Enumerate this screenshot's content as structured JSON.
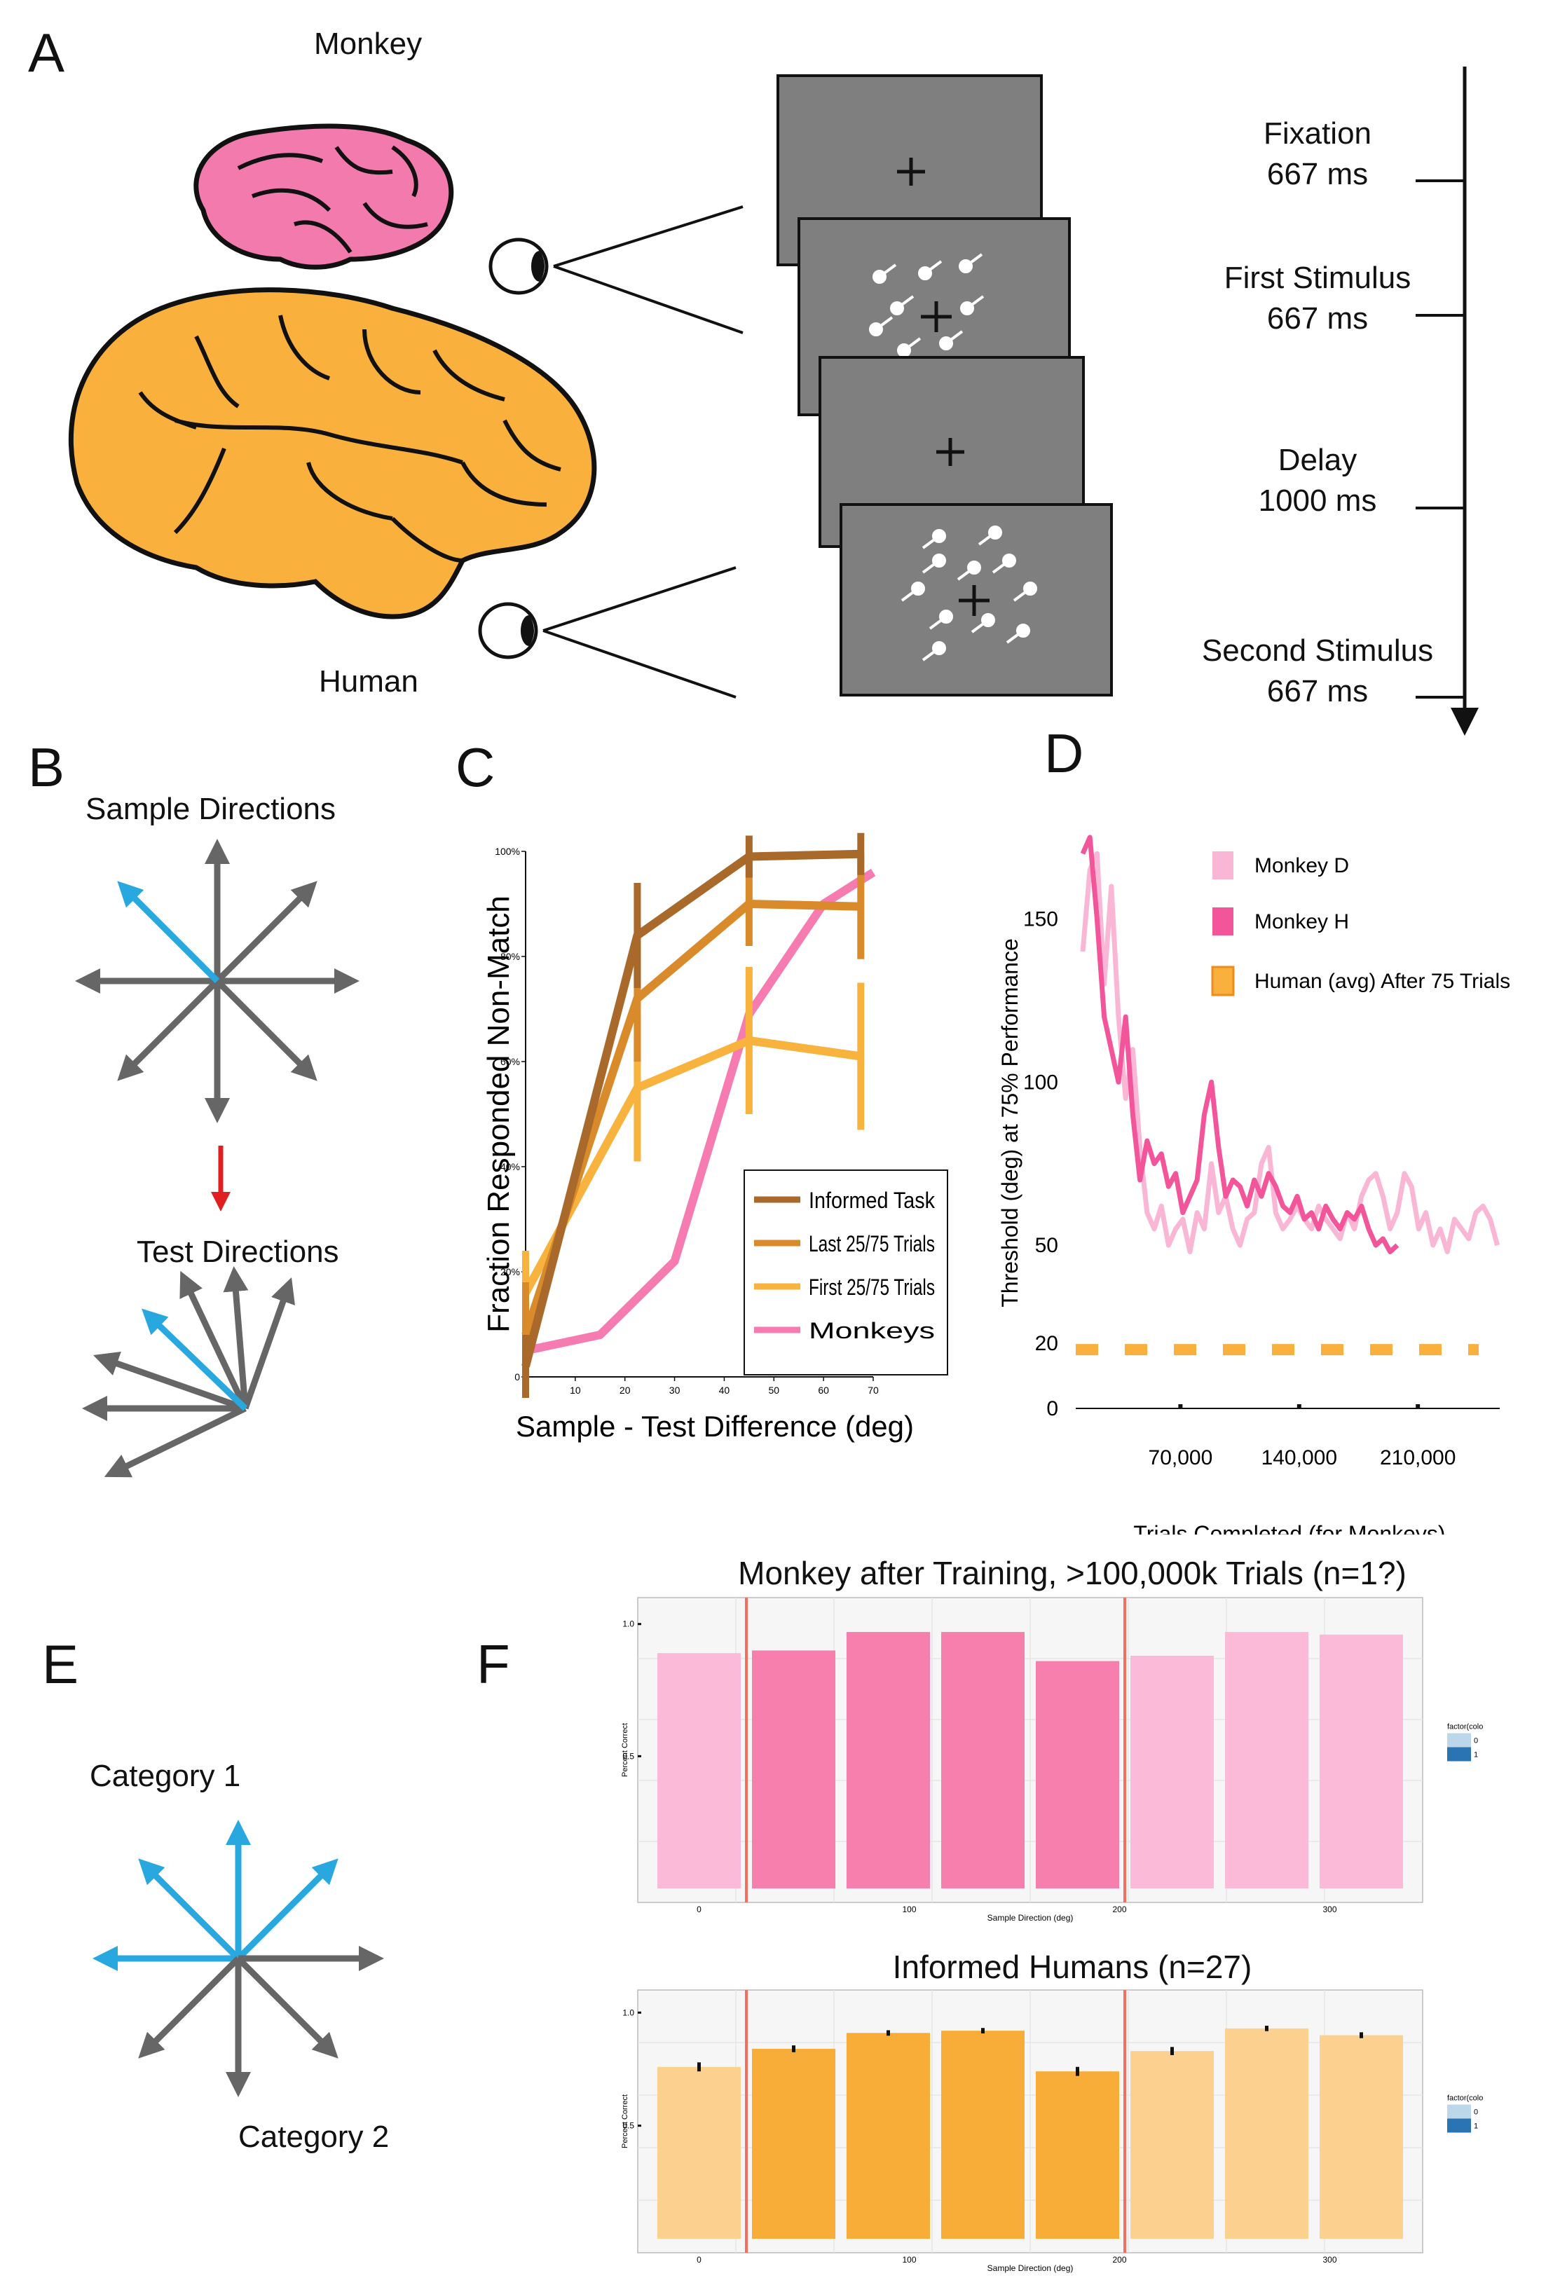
{
  "panels": {
    "a": "A",
    "b": "B",
    "c": "C",
    "d": "D",
    "e": "E",
    "f": "F"
  },
  "panel_a": {
    "monkey_label": "Monkey",
    "human_label": "Human",
    "timeline": [
      {
        "name": "Fixation",
        "dur": "667 ms"
      },
      {
        "name": "First Stimulus",
        "dur": "667 ms"
      },
      {
        "name": "Delay",
        "dur": "1000 ms"
      },
      {
        "name": "Second Stimulus",
        "dur": "667 ms"
      }
    ],
    "colors": {
      "monkey_brain": "#f37aad",
      "human_brain": "#f9b03d",
      "screen": "#7f7f7f"
    }
  },
  "panel_b": {
    "sample_title": "Sample Directions",
    "test_title": "Test Directions",
    "colors": {
      "highlight": "#29a8e0",
      "arrow": "#666666",
      "red": "#e02020"
    }
  },
  "panel_e": {
    "cat1": "Category 1",
    "cat2": "Category 2"
  },
  "chart_data": [
    {
      "id": "C",
      "type": "line",
      "xlabel": "Sample - Test Difference (deg)",
      "ylabel": "Fraction Responded Non-Match",
      "xlim": [
        0,
        70
      ],
      "ylim": [
        0,
        100
      ],
      "xticks": [
        "0",
        "10",
        "20",
        "30",
        "40",
        "50",
        "60",
        "70"
      ],
      "yticks": [
        "0",
        "20%",
        "40%",
        "60%",
        "80%",
        "100%"
      ],
      "legend_position": "bottom-right",
      "series": [
        {
          "name": "Informed Task",
          "color": "#a8692a",
          "x": [
            0,
            22.5,
            45,
            67.5
          ],
          "y": [
            2,
            84,
            99,
            99.5
          ],
          "err": [
            3,
            5,
            2,
            2
          ]
        },
        {
          "name": "Last 25/75 Trials",
          "color": "#d98a2b",
          "x": [
            0,
            22.5,
            45,
            67.5
          ],
          "y": [
            8,
            72,
            90,
            89.5
          ],
          "err": [
            5,
            6,
            4,
            5
          ]
        },
        {
          "name": "First 25/75 Trials",
          "color": "#f7b33d",
          "x": [
            0,
            22.5,
            45,
            67.5
          ],
          "y": [
            16,
            55,
            64,
            61
          ],
          "err": [
            4,
            7,
            7,
            7
          ]
        },
        {
          "name": "Monkeys",
          "color": "#f57bb0",
          "x": [
            0,
            15,
            30,
            45,
            60,
            70
          ],
          "y": [
            5,
            8,
            22,
            69,
            90,
            96
          ]
        }
      ]
    },
    {
      "id": "D",
      "type": "line",
      "xlabel": "Trials Completed (for Monkeys)",
      "ylabel": "Threshold (deg) at 75% Performance",
      "xticks": [
        "70,000",
        "140,000",
        "210,000"
      ],
      "yticks": [
        "0",
        "20",
        "50",
        "100",
        "150"
      ],
      "ylim": [
        0,
        175
      ],
      "legend": [
        "Monkey D",
        "Monkey H",
        "Human (avg) After 75 Trials"
      ],
      "legend_position": "top-right",
      "colors": [
        "#f9b7d5",
        "#f2559a",
        "#f9b03d"
      ],
      "human_avg": 18
    },
    {
      "id": "F-top",
      "type": "bar",
      "title": "Monkey after Training, >100,000k Trials (n=1?)",
      "xlabel": "Sample Direction (deg)",
      "ylabel": "Percent Correct",
      "xticks": [
        "0",
        "100",
        "200",
        "300"
      ],
      "yticks": [
        "0.5",
        "1.0"
      ],
      "legend_title": "factor(colo",
      "legend_items": [
        "0",
        "1"
      ],
      "categories": [
        0,
        45,
        90,
        135,
        180,
        225,
        270,
        315
      ],
      "values": [
        0.89,
        0.9,
        0.97,
        0.97,
        0.86,
        0.88,
        0.97,
        0.96
      ],
      "category_group": [
        0,
        1,
        1,
        1,
        1,
        0,
        0,
        0
      ],
      "colors": {
        "c0": "#fbbad7",
        "c1": "#f77fae",
        "line": "#f26f5f"
      }
    },
    {
      "id": "F-bottom",
      "type": "bar",
      "title": "Informed Humans (n=27)",
      "xlabel": "Sample Direction (deg)",
      "ylabel": "Percent Correct",
      "xticks": [
        "0",
        "100",
        "200",
        "300"
      ],
      "yticks": [
        "0.5",
        "1.0"
      ],
      "legend_title": "factor(colo",
      "legend_items": [
        "0",
        "1"
      ],
      "categories": [
        0,
        45,
        90,
        135,
        180,
        225,
        270,
        315
      ],
      "values": [
        0.76,
        0.84,
        0.91,
        0.92,
        0.74,
        0.83,
        0.93,
        0.9
      ],
      "errors": [
        0.02,
        0.015,
        0.012,
        0.012,
        0.02,
        0.018,
        0.012,
        0.013
      ],
      "category_group": [
        0,
        1,
        1,
        1,
        1,
        0,
        0,
        0
      ],
      "colors": {
        "c0": "#fcd08e",
        "c1": "#f7ad37",
        "line": "#f26f5f"
      }
    }
  ]
}
